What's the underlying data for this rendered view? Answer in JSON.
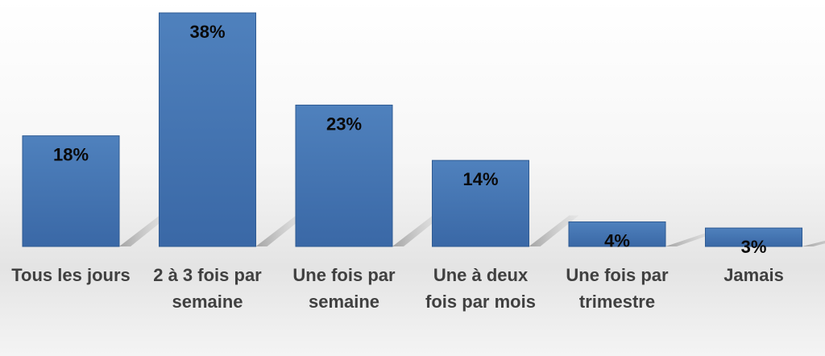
{
  "chart_data": {
    "type": "bar",
    "categories": [
      [
        "Tous les jours"
      ],
      [
        "2 à 3 fois par",
        "semaine"
      ],
      [
        "Une fois par",
        "semaine"
      ],
      [
        "Une à deux",
        "fois par mois"
      ],
      [
        "Une fois par",
        "trimestre"
      ],
      [
        "Jamais"
      ]
    ],
    "values": [
      18,
      38,
      23,
      14,
      4,
      3
    ],
    "value_labels": [
      "18%",
      "38%",
      "23%",
      "14%",
      "4%",
      "3%"
    ],
    "unit": "%",
    "ylim": [
      0,
      38
    ],
    "grid": false,
    "legend": "none",
    "colors": {
      "bar_top": "#4f81bd",
      "bar_bottom": "#3a68a6",
      "bar_edge": "#2f5b93",
      "shadow": "#9a9a9a",
      "category_text": "#404040",
      "value_text": "#0a0a0a"
    }
  }
}
